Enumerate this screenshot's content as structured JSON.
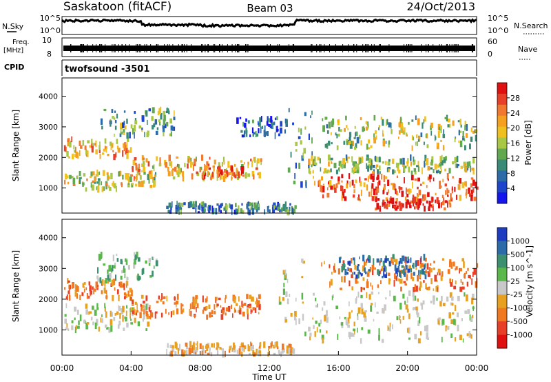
{
  "header": {
    "station": "Saskatoon (fitACF)",
    "beam": "Beam 03",
    "date": "24/Oct/2013"
  },
  "strip_labels": {
    "nsky": "N.Sky",
    "nsearch": "N.Search",
    "freq": "Freq.",
    "freq_unit": "[MHz]",
    "nave": "Nave",
    "cpid": "CPID",
    "cpid_value": "twofsound -3501"
  },
  "strip_ticks": {
    "noise_left": [
      "10^5",
      "10^0"
    ],
    "noise_right": [
      "10^5",
      "10^0"
    ],
    "freq_left": [
      "10",
      "8"
    ],
    "nave_right": [
      "60",
      "0"
    ]
  },
  "x_axis": {
    "label": "Time UT",
    "ticks": [
      "00:00",
      "04:00",
      "08:00",
      "12:00",
      "16:00",
      "20:00",
      "00:00"
    ]
  },
  "chart_data": [
    {
      "type": "heatmap",
      "quantity": "Power",
      "ylabel": "Slant Range [km]",
      "xlabel": "Time UT",
      "x_range_hours": [
        0,
        24
      ],
      "ylim": [
        180,
        4600
      ],
      "yticks": [
        "4000",
        "3000",
        "2000",
        "1000"
      ],
      "colorbar_label": "Power [dB]",
      "colorbar_ticks": [
        "28",
        "24",
        "20",
        "16",
        "12",
        "8",
        "4"
      ],
      "colorbar_colors": [
        "#1515ee",
        "#1f45cc",
        "#2d6aa8",
        "#3a8a78",
        "#62a850",
        "#a8c845",
        "#f0c020",
        "#f5a020",
        "#f07830",
        "#e84028",
        "#e01010"
      ],
      "regions": [
        {
          "t": [
            0.1,
            4.0
          ],
          "r": [
            2000,
            2600
          ],
          "level": 0.7
        },
        {
          "t": [
            0.1,
            5.5
          ],
          "r": [
            950,
            1500
          ],
          "level": 0.55
        },
        {
          "t": [
            2.0,
            6.5
          ],
          "r": [
            2700,
            3600
          ],
          "level": 0.35
        },
        {
          "t": [
            4.0,
            11.5
          ],
          "r": [
            1300,
            2000
          ],
          "level": 0.65
        },
        {
          "t": [
            8.0,
            10.5
          ],
          "r": [
            1300,
            1700
          ],
          "level": 0.9
        },
        {
          "t": [
            6.0,
            13.5
          ],
          "r": [
            200,
            500
          ],
          "level": 0.25
        },
        {
          "t": [
            10.0,
            13.0
          ],
          "r": [
            2700,
            3300
          ],
          "level": 0.15
        },
        {
          "t": [
            13.0,
            14.5
          ],
          "r": [
            1000,
            3600
          ],
          "level": 0.3
        },
        {
          "t": [
            14.0,
            24.0
          ],
          "r": [
            1500,
            2000
          ],
          "level": 0.45
        },
        {
          "t": [
            14.5,
            24.0
          ],
          "r": [
            600,
            1400
          ],
          "level": 0.85
        },
        {
          "t": [
            18.0,
            22.5
          ],
          "r": [
            300,
            650
          ],
          "level": 0.95
        },
        {
          "t": [
            15.0,
            24.0
          ],
          "r": [
            2300,
            3300
          ],
          "level": 0.45
        }
      ]
    },
    {
      "type": "heatmap",
      "quantity": "Velocity",
      "ylabel": "Slant Range [km]",
      "xlabel": "Time UT",
      "x_range_hours": [
        0,
        24
      ],
      "ylim": [
        180,
        4600
      ],
      "yticks": [
        "4000",
        "3000",
        "2000",
        "1000"
      ],
      "colorbar_label": "Velocity [m s^-1]",
      "colorbar_ticks": [
        "1000",
        "500",
        "100",
        "25",
        "-25",
        "-100",
        "-500",
        "-1000"
      ],
      "colorbar_colors": [
        "#1e3cc0",
        "#2d6aa8",
        "#3c9070",
        "#5ab84a",
        "#c8c8c8",
        "#e8a020",
        "#f07820",
        "#e84028",
        "#e01010"
      ],
      "regions": [
        {
          "t": [
            0.1,
            4.0
          ],
          "r": [
            2000,
            2600
          ],
          "vel_class": "-100"
        },
        {
          "t": [
            2.0,
            5.5
          ],
          "r": [
            2600,
            3500
          ],
          "vel_class": "100"
        },
        {
          "t": [
            0.1,
            5.0
          ],
          "r": [
            1000,
            1800
          ],
          "vel_class": "0"
        },
        {
          "t": [
            4.0,
            11.5
          ],
          "r": [
            1400,
            2100
          ],
          "vel_class": "-100"
        },
        {
          "t": [
            6.0,
            13.5
          ],
          "r": [
            200,
            550
          ],
          "vel_class": "-50"
        },
        {
          "t": [
            12.5,
            14.0
          ],
          "r": [
            1200,
            3300
          ],
          "vel_class": "0"
        },
        {
          "t": [
            14.0,
            24.0
          ],
          "r": [
            600,
            2200
          ],
          "vel_class": "0"
        },
        {
          "t": [
            15.0,
            24.0
          ],
          "r": [
            2300,
            3300
          ],
          "vel_class": "-100"
        },
        {
          "t": [
            16.0,
            21.0
          ],
          "r": [
            2700,
            3400
          ],
          "vel_class": "500"
        }
      ]
    }
  ]
}
